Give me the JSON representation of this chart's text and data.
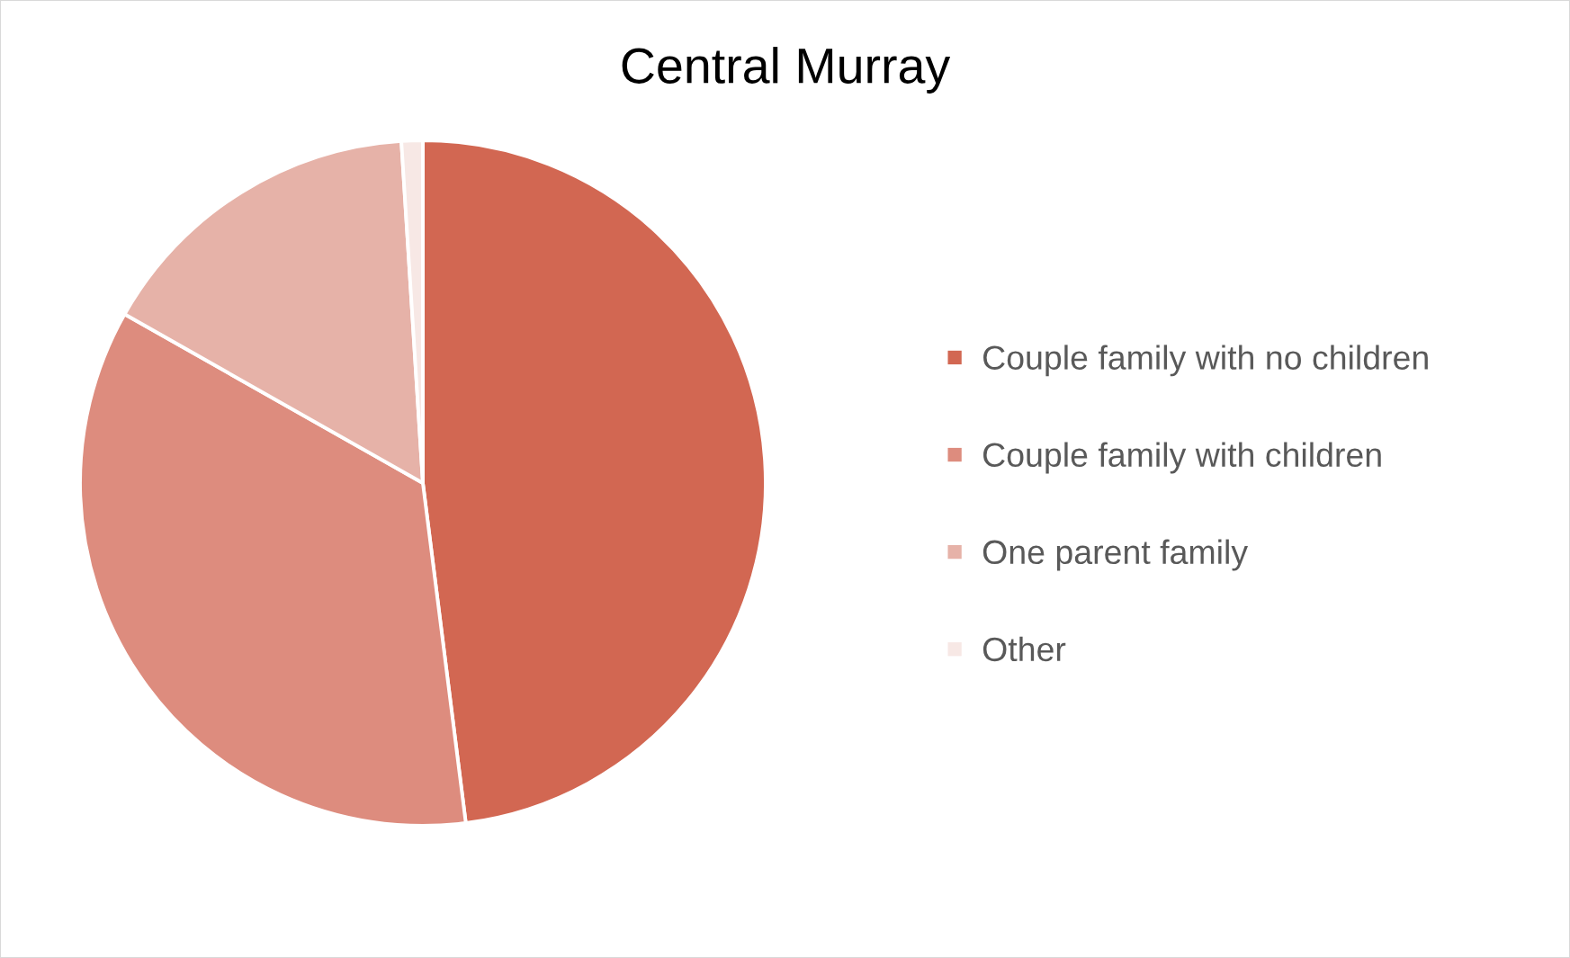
{
  "chart_data": {
    "type": "pie",
    "title": "Central Murray",
    "categories": [
      "Couple family with no children",
      "Couple family with children",
      "One parent family",
      "Other"
    ],
    "values": [
      48.0,
      35.2,
      15.8,
      1.0
    ],
    "colors": [
      "#d26752",
      "#dd8c7e",
      "#e6b2a8",
      "#f7e8e5"
    ],
    "legend": "right"
  }
}
